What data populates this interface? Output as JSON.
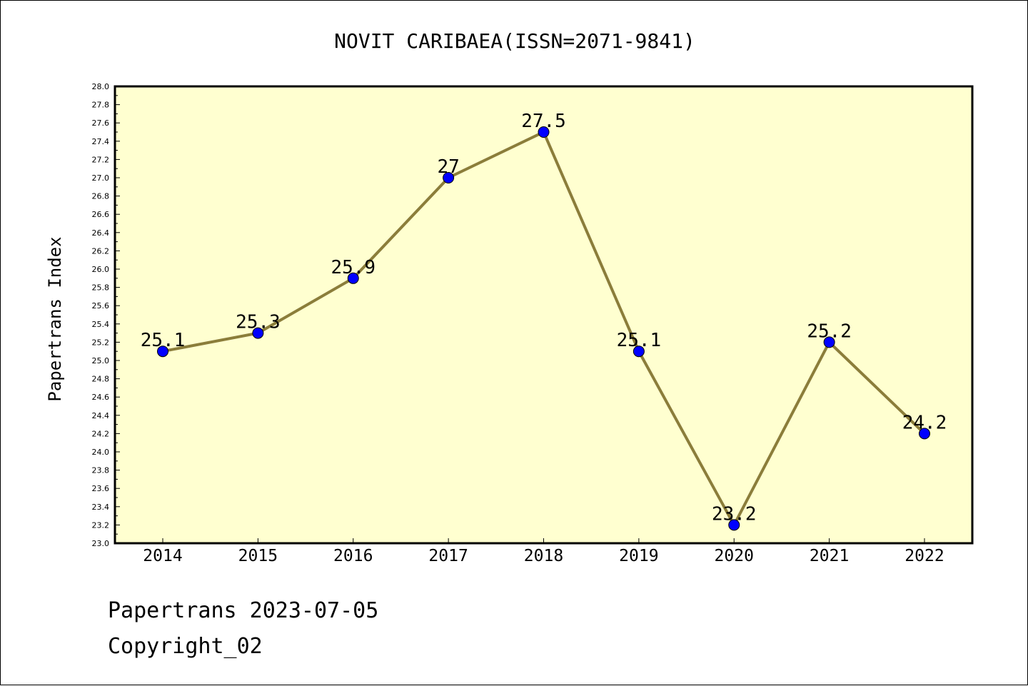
{
  "chart_data": {
    "type": "line",
    "title": "NOVIT CARIBAEA(ISSN=2071-9841)",
    "xlabel": "",
    "ylabel": "Papertrans Index",
    "categories": [
      "2014",
      "2015",
      "2016",
      "2017",
      "2018",
      "2019",
      "2020",
      "2021",
      "2022"
    ],
    "values": [
      25.1,
      25.3,
      25.9,
      27,
      27.5,
      25.1,
      23.2,
      25.2,
      24.2
    ],
    "data_labels": [
      "25.1",
      "25.3",
      "25.9",
      "27",
      "27.5",
      "25.1",
      "23.2",
      "25.2",
      "24.2"
    ],
    "ylim": [
      23.0,
      28.0
    ],
    "y_tick_labels": [
      "23.0",
      "23.2",
      "23.4",
      "23.6",
      "23.8",
      "24.0",
      "24.2",
      "24.4",
      "24.6",
      "24.8",
      "25.0",
      "25.2",
      "25.4",
      "25.6",
      "25.8",
      "26.0",
      "26.2",
      "26.4",
      "26.6",
      "26.8",
      "27.0",
      "27.2",
      "27.4",
      "27.6",
      "27.8",
      "28.0"
    ],
    "grid": false,
    "legend": "none",
    "colors": {
      "plot_background": "#FFFFD0",
      "line": "#8B7D3A",
      "marker": "#0000FF",
      "axis": "#000000"
    }
  },
  "footer": {
    "line1": "Papertrans 2023-07-05",
    "line2": "Copyright_02"
  }
}
